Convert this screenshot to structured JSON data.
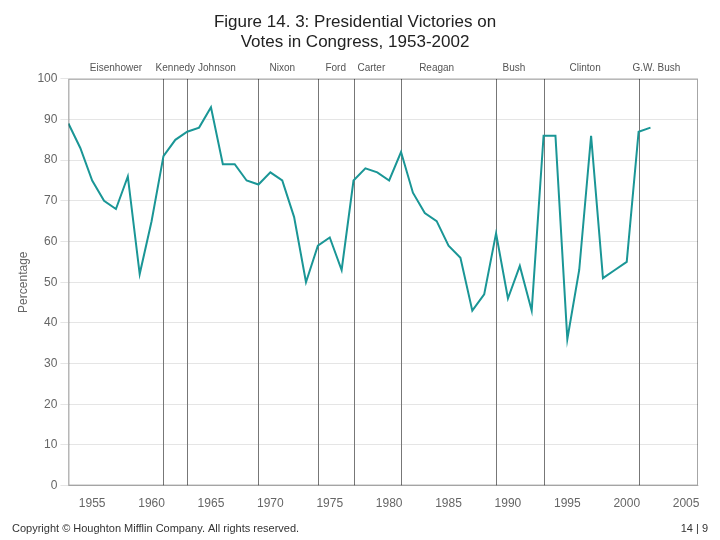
{
  "chart_data": {
    "type": "line",
    "title": "Figure 14. 3: Presidential Victories on",
    "subtitle": "Votes in Congress, 1953-2002",
    "y_label": "Percentage",
    "color": "#1a9696",
    "x": [
      1953,
      1954,
      1955,
      1956,
      1957,
      1958,
      1959,
      1960,
      1961,
      1962,
      1963,
      1964,
      1965,
      1966,
      1967,
      1968,
      1969,
      1970,
      1971,
      1972,
      1973,
      1974,
      1975,
      1976,
      1977,
      1978,
      1979,
      1980,
      1981,
      1982,
      1983,
      1984,
      1985,
      1986,
      1987,
      1988,
      1989,
      1990,
      1991,
      1992,
      1993,
      1994,
      1995,
      1996,
      1997,
      1998,
      1999,
      2000,
      2001,
      2002
    ],
    "values": [
      89,
      83,
      75,
      70,
      68,
      76,
      52,
      65,
      81,
      85,
      87,
      88,
      93,
      79,
      79,
      75,
      74,
      77,
      75,
      66,
      50,
      59,
      61,
      53,
      75,
      78,
      77,
      75,
      82,
      72,
      67,
      65,
      59,
      56,
      43,
      47,
      62,
      46,
      54,
      43,
      86,
      86,
      36,
      53,
      86,
      51,
      53,
      55,
      87,
      88
    ],
    "xlim": [
      1953,
      2006
    ],
    "xticks": [
      1955,
      1960,
      1965,
      1970,
      1975,
      1980,
      1985,
      1990,
      1995,
      2000,
      2005
    ],
    "ylim": [
      0,
      100
    ],
    "yticks": [
      0,
      10,
      20,
      30,
      40,
      50,
      60,
      70,
      80,
      90,
      100
    ],
    "grid": "y",
    "president_lines": [
      1961,
      1963,
      1969,
      1974,
      1977,
      1981,
      1989,
      1993,
      2001
    ],
    "annotations": [
      {
        "text": "Eisenhower",
        "x": 1957
      },
      {
        "text": "Kennedy",
        "x": 1962
      },
      {
        "text": "Johnson",
        "x": 1965.5
      },
      {
        "text": "Nixon",
        "x": 1971
      },
      {
        "text": "Ford",
        "x": 1975.5
      },
      {
        "text": "Carter",
        "x": 1978.5
      },
      {
        "text": "Reagan",
        "x": 1984
      },
      {
        "text": "Bush",
        "x": 1990.5
      },
      {
        "text": "Clinton",
        "x": 1996.5
      },
      {
        "text": "G.W. Bush",
        "x": 2002.5
      }
    ],
    "source": "Copyright © Houghton Mifflin Company. All rights reserved.",
    "page": "14 | 9"
  }
}
